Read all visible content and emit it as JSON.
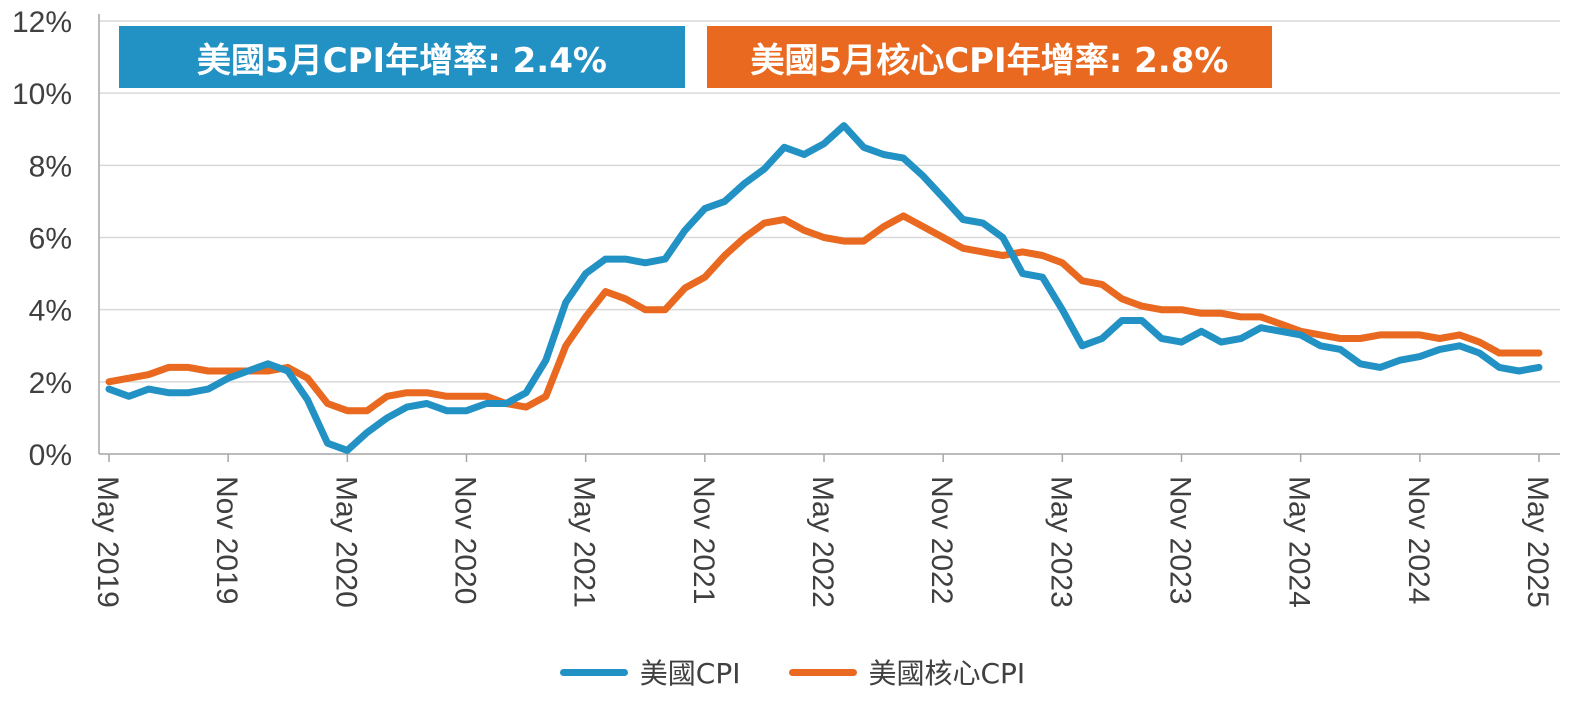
{
  "colors": {
    "cpi": "#2291c4",
    "core": "#e8691f",
    "grid": "#d9d9d9",
    "text": "#404040"
  },
  "banners": {
    "cpi": "美國5月CPI年增率: 2.4%",
    "core": "美國5月核心CPI年增率: 2.8%"
  },
  "legend": {
    "cpi": "美國CPI",
    "core": "美國核心CPI"
  },
  "chart_data": {
    "type": "line",
    "title": "",
    "xlabel": "",
    "ylabel": "",
    "ylim": [
      0,
      12
    ],
    "y_ticks": [
      0,
      2,
      4,
      6,
      8,
      10,
      12
    ],
    "y_tick_suffix": "%",
    "grid": true,
    "legend_position": "bottom",
    "x_tick_labels": [
      "May 2019",
      "Nov 2019",
      "May 2020",
      "Nov 2020",
      "May 2021",
      "Nov 2021",
      "May 2022",
      "Nov 2022",
      "May 2023",
      "Nov 2023",
      "May 2024",
      "Nov 2024",
      "May 2025"
    ],
    "x_tick_every": 6,
    "x": [
      "May 2019",
      "Jun 2019",
      "Jul 2019",
      "Aug 2019",
      "Sep 2019",
      "Oct 2019",
      "Nov 2019",
      "Dec 2019",
      "Jan 2020",
      "Feb 2020",
      "Mar 2020",
      "Apr 2020",
      "May 2020",
      "Jun 2020",
      "Jul 2020",
      "Aug 2020",
      "Sep 2020",
      "Oct 2020",
      "Nov 2020",
      "Dec 2020",
      "Jan 2021",
      "Feb 2021",
      "Mar 2021",
      "Apr 2021",
      "May 2021",
      "Jun 2021",
      "Jul 2021",
      "Aug 2021",
      "Sep 2021",
      "Oct 2021",
      "Nov 2021",
      "Dec 2021",
      "Jan 2022",
      "Feb 2022",
      "Mar 2022",
      "Apr 2022",
      "May 2022",
      "Jun 2022",
      "Jul 2022",
      "Aug 2022",
      "Sep 2022",
      "Oct 2022",
      "Nov 2022",
      "Dec 2022",
      "Jan 2023",
      "Feb 2023",
      "Mar 2023",
      "Apr 2023",
      "May 2023",
      "Jun 2023",
      "Jul 2023",
      "Aug 2023",
      "Sep 2023",
      "Oct 2023",
      "Nov 2023",
      "Dec 2023",
      "Jan 2024",
      "Feb 2024",
      "Mar 2024",
      "Apr 2024",
      "May 2024",
      "Jun 2024",
      "Jul 2024",
      "Aug 2024",
      "Sep 2024",
      "Oct 2024",
      "Nov 2024",
      "Dec 2024",
      "Jan 2025",
      "Feb 2025",
      "Mar 2025",
      "Apr 2025",
      "May 2025"
    ],
    "series": [
      {
        "name": "美國CPI",
        "values": [
          1.8,
          1.6,
          1.8,
          1.7,
          1.7,
          1.8,
          2.1,
          2.3,
          2.5,
          2.3,
          1.5,
          0.3,
          0.1,
          0.6,
          1.0,
          1.3,
          1.4,
          1.2,
          1.2,
          1.4,
          1.4,
          1.7,
          2.6,
          4.2,
          5.0,
          5.4,
          5.4,
          5.3,
          5.4,
          6.2,
          6.8,
          7.0,
          7.5,
          7.9,
          8.5,
          8.3,
          8.6,
          9.1,
          8.5,
          8.3,
          8.2,
          7.7,
          7.1,
          6.5,
          6.4,
          6.0,
          5.0,
          4.9,
          4.0,
          3.0,
          3.2,
          3.7,
          3.7,
          3.2,
          3.1,
          3.4,
          3.1,
          3.2,
          3.5,
          3.4,
          3.3,
          3.0,
          2.9,
          2.5,
          2.4,
          2.6,
          2.7,
          2.9,
          3.0,
          2.8,
          2.4,
          2.3,
          2.4
        ]
      },
      {
        "name": "美國核心CPI",
        "values": [
          2.0,
          2.1,
          2.2,
          2.4,
          2.4,
          2.3,
          2.3,
          2.3,
          2.3,
          2.4,
          2.1,
          1.4,
          1.2,
          1.2,
          1.6,
          1.7,
          1.7,
          1.6,
          1.6,
          1.6,
          1.4,
          1.3,
          1.6,
          3.0,
          3.8,
          4.5,
          4.3,
          4.0,
          4.0,
          4.6,
          4.9,
          5.5,
          6.0,
          6.4,
          6.5,
          6.2,
          6.0,
          5.9,
          5.9,
          6.3,
          6.6,
          6.3,
          6.0,
          5.7,
          5.6,
          5.5,
          5.6,
          5.5,
          5.3,
          4.8,
          4.7,
          4.3,
          4.1,
          4.0,
          4.0,
          3.9,
          3.9,
          3.8,
          3.8,
          3.6,
          3.4,
          3.3,
          3.2,
          3.2,
          3.3,
          3.3,
          3.3,
          3.2,
          3.3,
          3.1,
          2.8,
          2.8,
          2.8
        ]
      }
    ]
  }
}
